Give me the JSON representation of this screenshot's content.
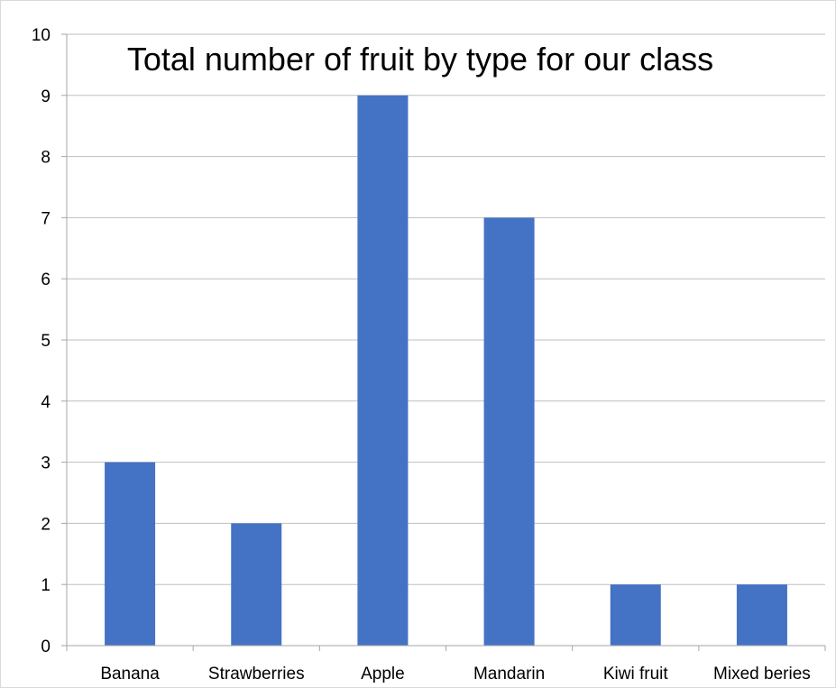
{
  "chart_data": {
    "type": "bar",
    "title": "Total number of fruit by type for our class",
    "xlabel": "",
    "ylabel": "",
    "categories": [
      "Banana",
      "Strawberries",
      "Apple",
      "Mandarin",
      "Kiwi fruit",
      "Mixed beries"
    ],
    "values": [
      3,
      2,
      9,
      7,
      1,
      1
    ],
    "ylim": [
      0,
      10
    ],
    "yticks": [
      0,
      1,
      2,
      3,
      4,
      5,
      6,
      7,
      8,
      9,
      10
    ],
    "grid": true,
    "legend": "none",
    "colors": {
      "bar": "#4472c4",
      "grid": "#bfbfbf",
      "axis": "#a6a6a6"
    }
  }
}
